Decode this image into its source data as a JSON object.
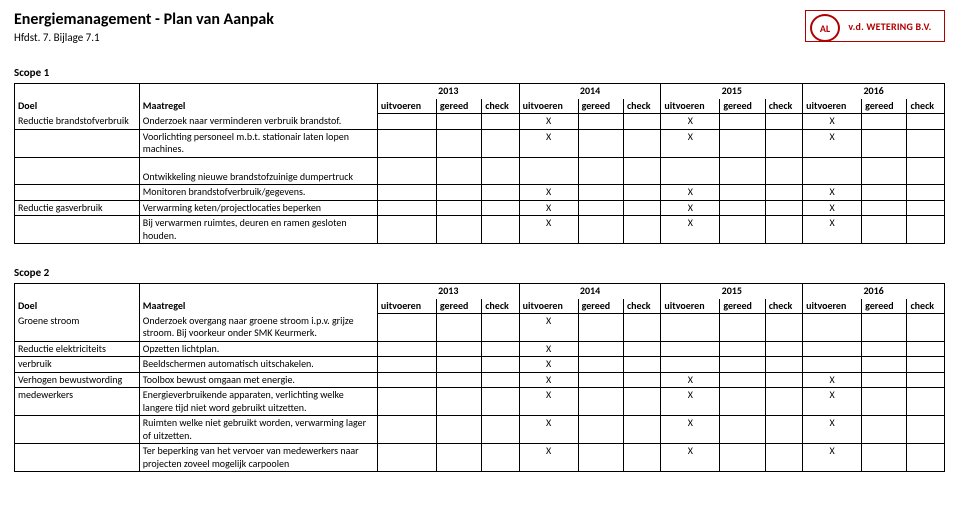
{
  "header": {
    "title": "Energiemanagement - Plan van Aanpak",
    "subtitle": "Hfdst. 7. Bijlage 7.1",
    "logo_initials": "AL",
    "logo_text": "v.d. WETERING B.V."
  },
  "columns": {
    "doel": "Doel",
    "maatregel": "Maatregel",
    "sub": {
      "uitvoeren": "uitvoeren",
      "gereed": "gereed",
      "check": "check"
    }
  },
  "years": [
    "2013",
    "2014",
    "2015",
    "2016"
  ],
  "scope1": {
    "label": "Scope 1",
    "blocks": [
      {
        "doel_rows": [
          "Reductie brandstofverbruik",
          "",
          ""
        ],
        "rows": [
          {
            "maatregel": "Onderzoek naar verminderen verbruik brandstof.",
            "marks": [
              "",
              "",
              "",
              "X",
              "",
              "",
              "X",
              "",
              "",
              "X",
              "",
              ""
            ],
            "bb": true
          },
          {
            "maatregel": "Voorlichting personeel m.b.t. stationair laten lopen machines.",
            "marks": [
              "",
              "",
              "",
              "X",
              "",
              "",
              "X",
              "",
              "",
              "X",
              "",
              ""
            ],
            "bb": true
          }
        ],
        "block_bottom_border": true
      },
      {
        "doel_rows": [
          "",
          "",
          "Reductie gasverbruik",
          ""
        ],
        "leading_spacer": true,
        "rows": [
          {
            "maatregel": "Ontwikkeling nieuwe brandstofzuinige dumpertruck",
            "marks": [
              "",
              "",
              "",
              "",
              "",
              "",
              "",
              "",
              "",
              "",
              "",
              ""
            ],
            "bb": true
          },
          {
            "maatregel": "Monitoren brandstofverbruik/gegevens.",
            "marks": [
              "",
              "",
              "",
              "X",
              "",
              "",
              "X",
              "",
              "",
              "X",
              "",
              ""
            ],
            "bb": true
          },
          {
            "maatregel": "Verwarming keten/projectlocaties beperken",
            "marks": [
              "",
              "",
              "",
              "X",
              "",
              "",
              "X",
              "",
              "",
              "X",
              "",
              ""
            ],
            "bb": true
          },
          {
            "maatregel": "Bij verwarmen ruimtes, deuren en ramen gesloten houden.",
            "marks": [
              "",
              "",
              "",
              "X",
              "",
              "",
              "X",
              "",
              "",
              "X",
              "",
              ""
            ],
            "bb": true
          }
        ],
        "block_bottom_border": true
      }
    ]
  },
  "scope2": {
    "label": "Scope 2",
    "blocks": [
      {
        "doel_rows": [
          "Groene stroom",
          "Reductie elektriciteits",
          "verbruik",
          "Verhogen bewustwording",
          "medewerkers",
          "",
          "",
          ""
        ],
        "rows": [
          {
            "maatregel": "Onderzoek overgang naar groene stroom i.p.v. grijze stroom. Bij voorkeur onder SMK Keurmerk.",
            "marks": [
              "",
              "",
              "",
              "X",
              "",
              "",
              "",
              "",
              "",
              "",
              "",
              ""
            ],
            "bb": true
          },
          {
            "maatregel": "Opzetten lichtplan.",
            "marks": [
              "",
              "",
              "",
              "X",
              "",
              "",
              "",
              "",
              "",
              "",
              "",
              ""
            ],
            "bb": true
          },
          {
            "maatregel": "Beeldschermen automatisch uitschakelen.",
            "marks": [
              "",
              "",
              "",
              "X",
              "",
              "",
              "",
              "",
              "",
              "",
              "",
              ""
            ],
            "bb": true
          },
          {
            "maatregel": "Toolbox bewust omgaan met energie.",
            "marks": [
              "",
              "",
              "",
              "X",
              "",
              "",
              "X",
              "",
              "",
              "X",
              "",
              ""
            ],
            "bb": true
          },
          {
            "maatregel": "Energieverbruikende apparaten, verlichting welke langere tijd niet word gebruikt uitzetten.",
            "marks": [
              "",
              "",
              "",
              "X",
              "",
              "",
              "X",
              "",
              "",
              "X",
              "",
              ""
            ],
            "bb": true
          },
          {
            "maatregel": "Ruimten welke niet gebruikt worden, verwarming lager of uitzetten.",
            "marks": [
              "",
              "",
              "",
              "X",
              "",
              "",
              "X",
              "",
              "",
              "X",
              "",
              ""
            ],
            "bb": true
          },
          {
            "maatregel": "Ter beperking van het vervoer van medewerkers naar projecten zoveel mogelijk carpoolen",
            "marks": [
              "",
              "",
              "",
              "X",
              "",
              "",
              "X",
              "",
              "",
              "X",
              "",
              ""
            ],
            "bb": true
          }
        ],
        "block_bottom_border": true
      }
    ]
  }
}
